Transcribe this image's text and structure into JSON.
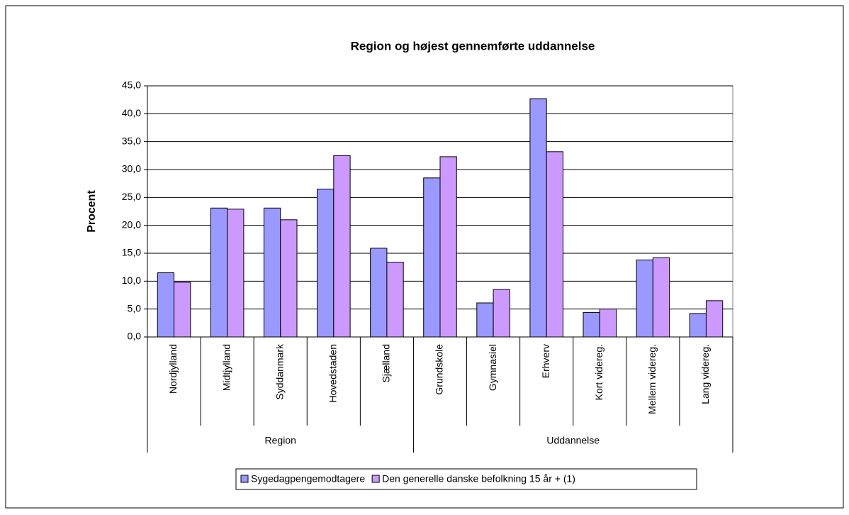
{
  "chart_data": {
    "type": "bar",
    "title": "Region og højest gennemførte uddannelse",
    "y_label": "Procent",
    "groups": [
      {
        "name": "Region",
        "categories": [
          "Nordjylland",
          "Midtjylland",
          "Syddanmark",
          "Hovedstaden",
          "Sjælland"
        ]
      },
      {
        "name": "Uddannelse",
        "categories": [
          "Grundskole",
          "Gymnasiel",
          "Erhverv",
          "Kort videreg.",
          "Mellem videreg.",
          "Lang videreg."
        ]
      }
    ],
    "series": [
      {
        "name": "Sygedagpengemodtagere",
        "color": "#9999ff",
        "values": [
          11.5,
          23.1,
          23.1,
          26.5,
          15.9,
          28.5,
          6.1,
          42.7,
          4.4,
          13.8,
          4.2
        ]
      },
      {
        "name": "Den generelle danske befolkning 15 år + (1)",
        "color": "#cc99ff",
        "values": [
          9.8,
          22.9,
          21.0,
          32.5,
          13.4,
          32.3,
          8.5,
          33.2,
          5.0,
          14.2,
          6.5
        ]
      }
    ],
    "ylim": [
      0,
      45
    ],
    "yticks": [
      {
        "value": 0,
        "label": "0,0"
      },
      {
        "value": 5,
        "label": "5,0"
      },
      {
        "value": 10,
        "label": "10,0"
      },
      {
        "value": 15,
        "label": "15,0"
      },
      {
        "value": 20,
        "label": "20,0"
      },
      {
        "value": 25,
        "label": "25,0"
      },
      {
        "value": 30,
        "label": "30,0"
      },
      {
        "value": 35,
        "label": "35,0"
      },
      {
        "value": 40,
        "label": "40,0"
      },
      {
        "value": 45,
        "label": "45,0"
      }
    ],
    "grid": true
  }
}
